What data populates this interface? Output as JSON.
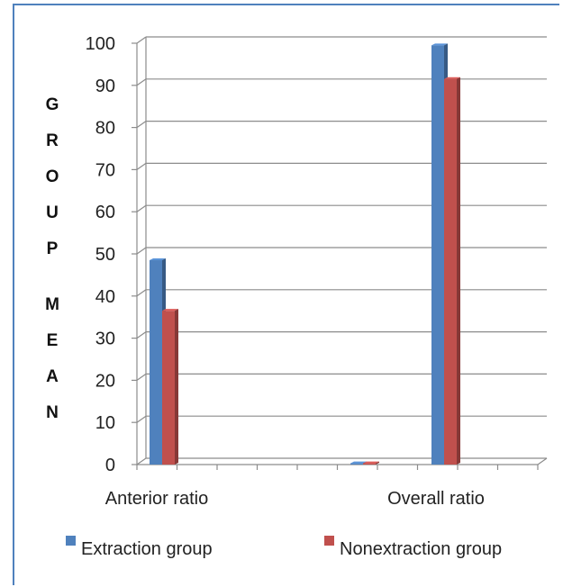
{
  "chart_data": {
    "type": "bar",
    "title": "",
    "xlabel": "",
    "ylabel": "GROUP MEAN",
    "categories": [
      "Anterior ratio",
      "",
      "Overall ratio"
    ],
    "series": [
      {
        "name": "Extraction group",
        "values": [
          48.5,
          0.3,
          99.5
        ],
        "color": "#4f81bd"
      },
      {
        "name": "Nonextraction group",
        "values": [
          36.5,
          0.3,
          91.5
        ],
        "color": "#c0504d"
      }
    ],
    "ylim": [
      0,
      100
    ],
    "yticks": [
      "0",
      "10",
      "20",
      "30",
      "40",
      "50",
      "60",
      "70",
      "80",
      "90",
      "100"
    ],
    "grid": true,
    "legend": "bottom",
    "style": "3d-clustered-bar"
  }
}
